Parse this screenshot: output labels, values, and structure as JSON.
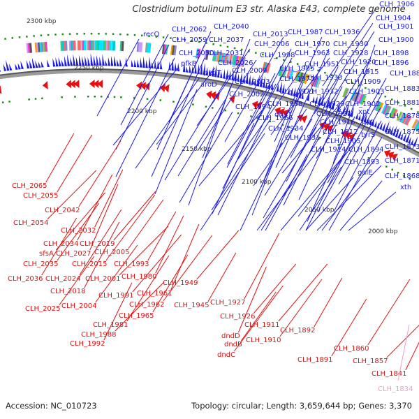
{
  "title": "Clostridium botulinum E3 str. Alaska E43, complete genome",
  "footer": {
    "accession": "Accession: NC_010723",
    "summary": "Topology: circular; Length: 3,659,644 bp; Genes: 3,370"
  },
  "colors": {
    "forward_label": "#1a1ae6",
    "reverse_label": "#e01010",
    "rna_label": "#f29ccc",
    "forward_genes": "#1a1ae6",
    "reverse_genes": "#e81010",
    "backbone": "#888888",
    "tick_marks": "#1a8a1a"
  },
  "kbp_ticks": [
    {
      "label": "2300 kbp"
    },
    {
      "label": "2250 kbp"
    },
    {
      "label": "2200 kbp"
    },
    {
      "label": "2150 kbp"
    },
    {
      "label": "2100 kbp"
    },
    {
      "label": "2050 kbp"
    },
    {
      "label": "2000 kbp"
    }
  ],
  "forward_labels": [
    "recQ",
    "CLH_2062",
    "CLH_2059",
    "CLH_2050",
    "pfkB",
    "CLH_2040",
    "CLH_2037",
    "CLH_2031",
    "CLH_2026",
    "pepT",
    "aroD",
    "CLH_2013",
    "CLH_2006",
    "CLH_1998",
    "CLH_2009",
    "CLH_2003",
    "CLH_2002",
    "CLH_1994",
    "CLH_1987",
    "CLH_1970",
    "CLH_1963",
    "CLH_1985",
    "CLH_1975",
    "CLH_1971",
    "CLH_1958",
    "CLH_1966",
    "CLH_1936",
    "CLH_1930",
    "CLH_1928",
    "CLH_1951",
    "CLH_1933",
    "CLH_1932",
    "CLH_1929",
    "dhaT",
    "CLH_1934",
    "CLH_1931",
    "CLH_1921",
    "CLH_1916",
    "CLH_1912",
    "CLH_1905",
    "CLH_1914",
    "CLH_1920",
    "CLH_1915",
    "CLH_1909",
    "CLH_1903",
    "CLH_1902",
    "xpt",
    "pyc",
    "tyrS",
    "CLH_1894",
    "CLH_1893",
    "galE",
    "CLH_1906",
    "CLH_1904",
    "CLH_1901",
    "CLH_1900",
    "CLH_1898",
    "CLH_1896",
    "CLH_1888",
    "CLH_1883",
    "CLH_1881",
    "CLH_1878",
    "CLH_1875",
    "CLH_1873",
    "CLH_1871",
    "CLH_1868",
    "xth"
  ],
  "reverse_labels": [
    "CLH_2065",
    "CLH_2055",
    "CLH_2042",
    "CLH_2054",
    "CLH_2032",
    "CLH_2034",
    "CLH_2019",
    "sfsA",
    "CLH_2027",
    "CLH_2005",
    "CLH_2035",
    "CLH_2015",
    "CLH_1993",
    "CLH_2036",
    "CLH_2024",
    "CLH_2001",
    "CLH_1980",
    "CLH_2018",
    "CLH_1949",
    "CLH_1991",
    "CLH_1961",
    "CLH_2025",
    "CLH_2004",
    "CLH_1962",
    "CLH_1945",
    "CLH_1965",
    "CLH_1981",
    "CLH_1988",
    "CLH_1992",
    "CLH_1927",
    "CLH_1926",
    "CLH_1911",
    "dndD",
    "dndB",
    "CLH_1910",
    "dndC",
    "CLH_1892",
    "CLH_1891",
    "CLH_1860",
    "CLH_1857",
    "CLH_1841"
  ],
  "rna_labels": [
    "CLH_1834"
  ]
}
